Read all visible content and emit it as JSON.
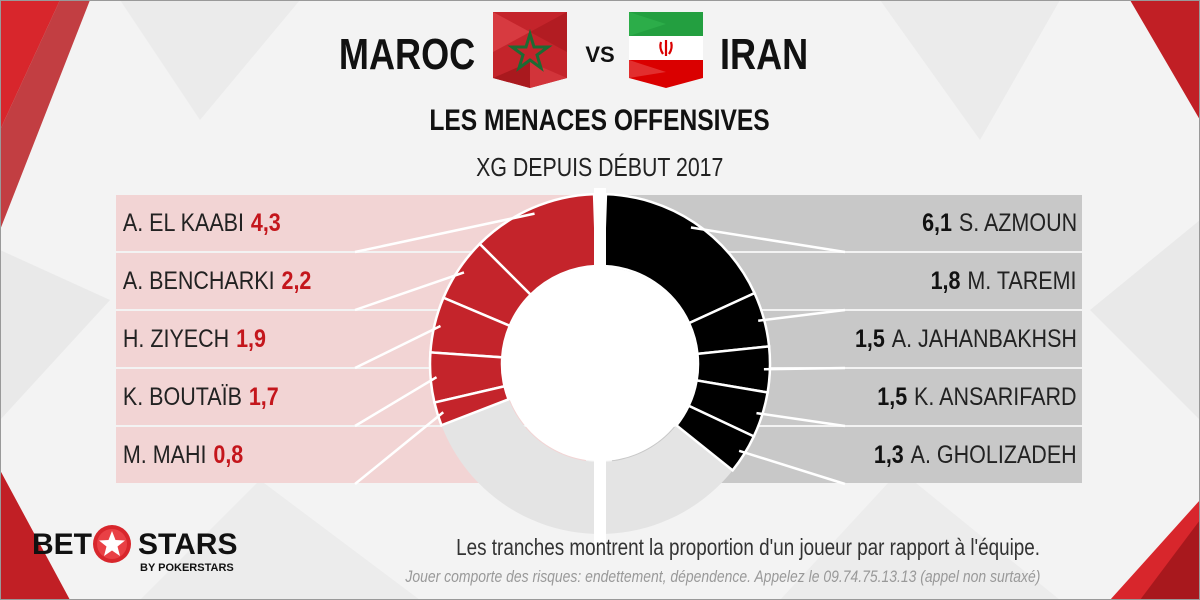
{
  "header": {
    "team_left": "MAROC",
    "vs": "VS",
    "team_right": "IRAN",
    "title": "LES MENACES OFFENSIVES",
    "subtitle": "XG DEPUIS DÉBUT 2017"
  },
  "colors": {
    "morocco_red": "#c4242b",
    "morocco_light": "#f2d4d4",
    "iran_black": "#000000",
    "iran_grey": "#c8c8c8",
    "donut_rest": "#e4e4e4",
    "value_red": "#c4161c"
  },
  "chart_data": {
    "type": "pie",
    "title": "LES MENACES OFFENSIVES",
    "subtitle": "XG DEPUIS DÉBUT 2017",
    "series": [
      {
        "name": "MAROC",
        "labels": [
          "A. EL KAABI",
          "A. BENCHARKI",
          "H. ZIYECH",
          "K. BOUTAÏB",
          "M. MAHI"
        ],
        "values": [
          4.3,
          2.2,
          1.9,
          1.7,
          0.8
        ],
        "value_labels": [
          "4,3",
          "2,2",
          "1,9",
          "1,7",
          "0,8"
        ],
        "team_share": 0.62
      },
      {
        "name": "IRAN",
        "labels": [
          "S. AZMOUN",
          "M. TAREMI",
          "A. JAHANBAKHSH",
          "K. ANSARIFARD",
          "A. GHOLIZADEH"
        ],
        "values": [
          6.1,
          1.8,
          1.5,
          1.5,
          1.3
        ],
        "value_labels": [
          "6,1",
          "1,8",
          "1,5",
          "1,5",
          "1,3"
        ],
        "team_share": 0.72
      }
    ]
  },
  "footer": {
    "note": "Les tranches montrent la proportion d'un joueur par rapport à l'équipe.",
    "disclaimer": "Jouer comporte des risques: endettement, dépendence. Appelez le 09.74.75.13.13 (appel non surtaxé)"
  },
  "logo": {
    "bet": "BET",
    "stars": "STARS",
    "sub": "BY POKERSTARS"
  },
  "icons": {
    "flag_left": "morocco-flag-icon",
    "flag_right": "iran-flag-icon",
    "logo_star": "star-icon"
  }
}
